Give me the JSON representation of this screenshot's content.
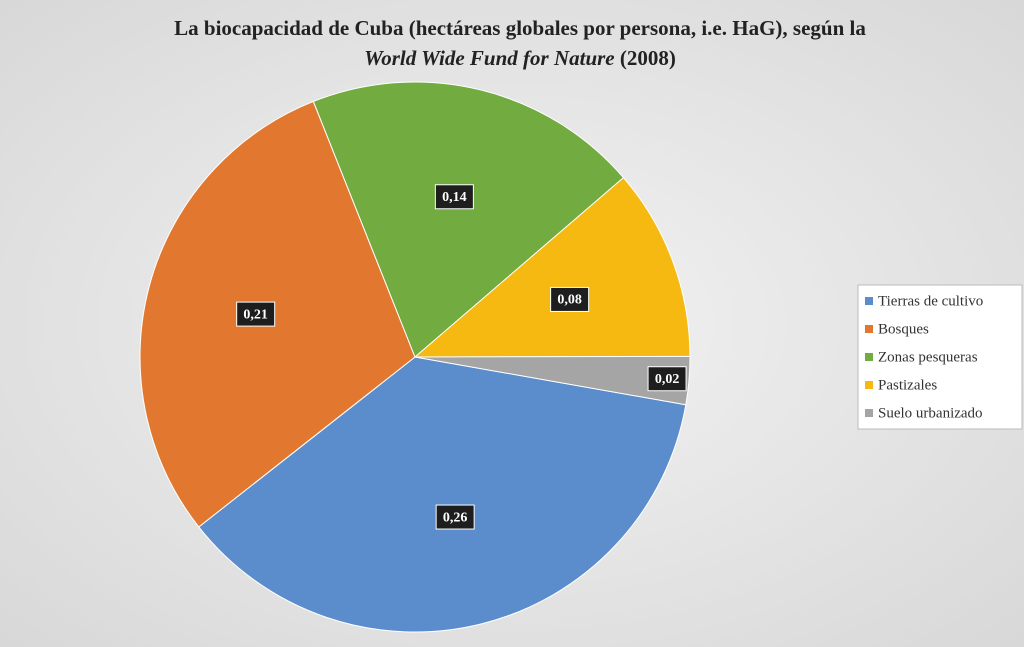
{
  "chart_data": {
    "type": "pie",
    "title": "La biocapacidad de Cuba (hectáreas globales por persona, i.e. HaG), según la",
    "title_source": "World Wide Fund for Nature",
    "title_year": "(2008)",
    "categories": [
      "Tierras de cultivo",
      "Bosques",
      "Zonas pesqueras",
      "Pastizales",
      "Suelo urbanizado"
    ],
    "values": [
      0.26,
      0.21,
      0.14,
      0.08,
      0.02
    ],
    "value_labels": [
      "0,26",
      "0,21",
      "0,14",
      "0,08",
      "0,02"
    ],
    "colors": [
      "#5b8ccb",
      "#e2782f",
      "#72ab3f",
      "#f6b911",
      "#a5a5a5"
    ],
    "legend": "right"
  }
}
